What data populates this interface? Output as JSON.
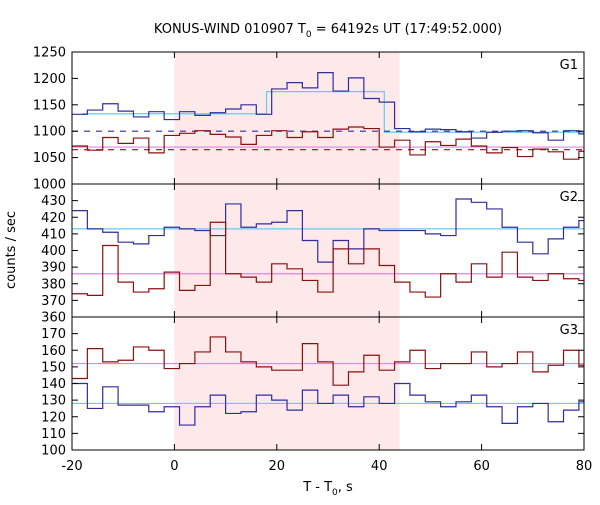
{
  "chart_data": {
    "type": "line",
    "title": {
      "prefix": "KONUS-WIND 010907 T",
      "sub": "0",
      "suffix": " = 64192s UT (17:49:52.000)"
    },
    "xlabel": {
      "prefix": "T - T",
      "sub": "0",
      "suffix": ", s"
    },
    "ylabel": "counts / sec",
    "xlim": [
      -20,
      80
    ],
    "x_ticks": [
      -20,
      0,
      20,
      40,
      60,
      80
    ],
    "highlight_interval": [
      0,
      44
    ],
    "highlight_color": "#fde8ea",
    "colors": {
      "blue": "#2e2e9e",
      "red": "#8b1010",
      "cyan": "#66ccee",
      "pink": "#dd88dd"
    },
    "panels": [
      {
        "label": "G1",
        "ylim": [
          1000,
          1250
        ],
        "y_ticks": [
          1000,
          1050,
          1100,
          1150,
          1200,
          1250
        ],
        "bin_edges": [
          -20,
          -17,
          -14,
          -11,
          -8,
          -5,
          -2,
          1,
          4,
          7,
          10,
          13,
          16,
          19,
          22,
          25,
          28,
          31,
          34,
          37,
          40,
          43,
          46,
          49,
          52,
          55,
          58,
          61,
          64,
          67,
          70,
          73,
          76,
          79,
          80
        ],
        "series": [
          {
            "color": "blue",
            "values": [
              1132,
              1140,
              1152,
              1138,
              1127,
              1137,
              1122,
              1137,
              1130,
              1135,
              1142,
              1150,
              1132,
              1180,
              1192,
              1182,
              1211,
              1176,
              1201,
              1162,
              1155,
              1105,
              1099,
              1104,
              1103,
              1099,
              1087,
              1098,
              1100,
              1101,
              1097,
              1083,
              1101,
              1095
            ]
          },
          {
            "color": "red",
            "values": [
              1072,
              1064,
              1088,
              1077,
              1087,
              1059,
              1092,
              1096,
              1101,
              1094,
              1089,
              1075,
              1092,
              1101,
              1088,
              1099,
              1088,
              1104,
              1108,
              1105,
              1070,
              1083,
              1055,
              1080,
              1073,
              1085,
              1072,
              1059,
              1069,
              1052,
              1066,
              1061,
              1047,
              1062
            ]
          }
        ],
        "fits": [
          {
            "color": "cyan",
            "segments": [
              [
                -18,
                44,
                null
              ],
              [
                -18,
                1133,
                1133
              ],
              [
                1133,
                1175,
                1175
              ]
            ]
          },
          {
            "color": "cyan",
            "steps": [
              [
                -18,
                1133
              ],
              [
                18,
                1133
              ],
              [
                18,
                1175
              ],
              [
                41,
                1175
              ],
              [
                41,
                1098
              ],
              [
                80,
                1098
              ]
            ]
          },
          {
            "color": "pink",
            "steps": [
              [
                -20,
                1070
              ],
              [
                80,
                1070
              ]
            ]
          }
        ],
        "backgrounds": [
          {
            "color": "blue",
            "value": 1100
          },
          {
            "color": "red",
            "value": 1065
          }
        ]
      },
      {
        "label": "G2",
        "ylim": [
          360,
          440
        ],
        "y_ticks": [
          360,
          370,
          380,
          390,
          400,
          410,
          420,
          430
        ],
        "bin_edges": [
          -20,
          -17,
          -14,
          -11,
          -8,
          -5,
          -2,
          1,
          4,
          7,
          10,
          13,
          16,
          19,
          22,
          25,
          28,
          31,
          34,
          37,
          40,
          43,
          46,
          49,
          52,
          55,
          58,
          61,
          64,
          67,
          70,
          73,
          76,
          79,
          80
        ],
        "series": [
          {
            "color": "blue",
            "values": [
              424,
              413,
              411,
              405,
              404,
              409,
              414,
              413,
              412,
              409,
              428,
              414,
              416,
              417,
              424,
              406,
              393,
              406,
              401,
              413,
              412,
              412,
              412,
              410,
              409,
              431,
              429,
              425,
              414,
              405,
              398,
              407,
              414,
              418
            ]
          },
          {
            "color": "red",
            "values": [
              374,
              373,
              403,
              381,
              375,
              377,
              387,
              376,
              379,
              417,
              386,
              384,
              381,
              392,
              389,
              382,
              375,
              401,
              392,
              401,
              391,
              381,
              375,
              372,
              386,
              381,
              392,
              384,
              399,
              384,
              382,
              386,
              383,
              382
            ]
          }
        ],
        "fits": [
          {
            "color": "cyan",
            "steps": [
              [
                -20,
                413
              ],
              [
                80,
                413
              ]
            ]
          },
          {
            "color": "pink",
            "steps": [
              [
                -20,
                386
              ],
              [
                80,
                386
              ]
            ]
          }
        ],
        "backgrounds": []
      },
      {
        "label": "G3",
        "ylim": [
          100,
          180
        ],
        "y_ticks": [
          100,
          110,
          120,
          130,
          140,
          150,
          160,
          170
        ],
        "bin_edges": [
          -20,
          -17,
          -14,
          -11,
          -8,
          -5,
          -2,
          1,
          4,
          7,
          10,
          13,
          16,
          19,
          22,
          25,
          28,
          31,
          34,
          37,
          40,
          43,
          46,
          49,
          52,
          55,
          58,
          61,
          64,
          67,
          70,
          73,
          76,
          79,
          80
        ],
        "series": [
          {
            "color": "blue",
            "values": [
              140,
              125,
              138,
              127,
              127,
              123,
              126,
              115,
              126,
              133,
              122,
              123,
              133,
              130,
              124,
              136,
              128,
              133,
              126,
              132,
              128,
              140,
              133,
              129,
              126,
              129,
              133,
              126,
              116,
              126,
              128,
              117,
              124,
              129
            ]
          },
          {
            "color": "red",
            "values": [
              143,
              161,
              153,
              154,
              162,
              160,
              149,
              152,
              159,
              168,
              159,
              153,
              150,
              148,
              148,
              164,
              153,
              139,
              147,
              157,
              148,
              153,
              160,
              149,
              152,
              152,
              159,
              150,
              152,
              159,
              147,
              151,
              160,
              151
            ]
          }
        ],
        "fits": [
          {
            "color": "pink",
            "steps": [
              [
                -20,
                152
              ],
              [
                80,
                152
              ]
            ]
          },
          {
            "color": "cyan",
            "steps": [
              [
                -20,
                128
              ],
              [
                80,
                128
              ]
            ]
          }
        ],
        "backgrounds": []
      }
    ]
  }
}
